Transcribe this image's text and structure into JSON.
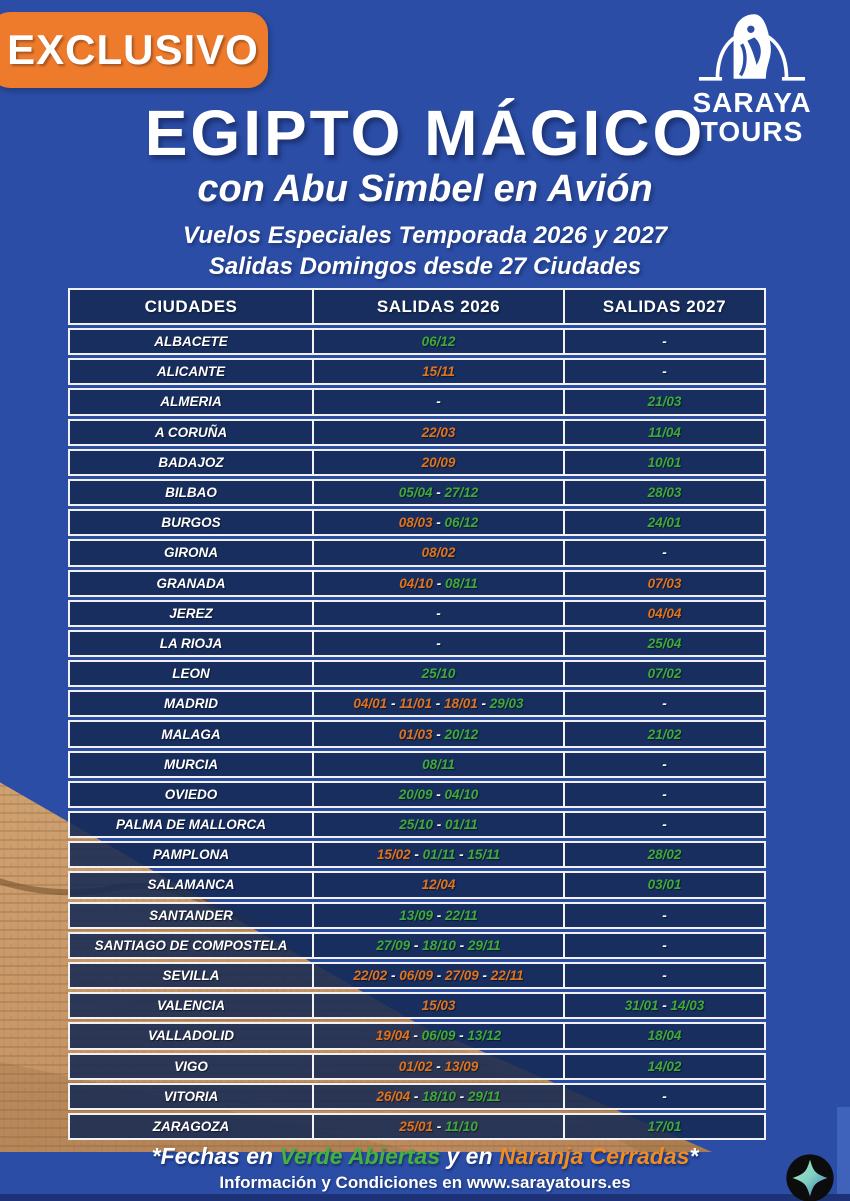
{
  "badge_label": "EXCLUSIVO",
  "logo": {
    "line1": "SARAYA",
    "line2": "TOURS"
  },
  "header": {
    "title": "EGIPTO MÁGICO",
    "subtitle": "con Abu Simbel en Avión",
    "season_line": "Vuelos Especiales Temporada 2026 y 2027",
    "departures_line": "Salidas Domingos desde 27 Ciudades"
  },
  "table": {
    "headers": [
      "CIUDADES",
      "SALIDAS 2026",
      "SALIDAS 2027"
    ],
    "rows": [
      {
        "city": "ALBACETE",
        "s2026": [
          {
            "t": "06/12",
            "c": "green"
          }
        ],
        "s2027": [
          {
            "t": "-",
            "c": "white"
          }
        ]
      },
      {
        "city": "ALICANTE",
        "s2026": [
          {
            "t": "15/11",
            "c": "orange"
          }
        ],
        "s2027": [
          {
            "t": "-",
            "c": "white"
          }
        ]
      },
      {
        "city": "ALMERIA",
        "s2026": [
          {
            "t": "-",
            "c": "white"
          }
        ],
        "s2027": [
          {
            "t": "21/03",
            "c": "green"
          }
        ]
      },
      {
        "city": "A CORUÑA",
        "s2026": [
          {
            "t": "22/03",
            "c": "orange"
          }
        ],
        "s2027": [
          {
            "t": "11/04",
            "c": "green"
          }
        ]
      },
      {
        "city": "BADAJOZ",
        "s2026": [
          {
            "t": "20/09",
            "c": "orange"
          }
        ],
        "s2027": [
          {
            "t": "10/01",
            "c": "green"
          }
        ]
      },
      {
        "city": "BILBAO",
        "s2026": [
          {
            "t": "05/04",
            "c": "green"
          },
          {
            "t": "27/12",
            "c": "green"
          }
        ],
        "s2027": [
          {
            "t": "28/03",
            "c": "green"
          }
        ]
      },
      {
        "city": "BURGOS",
        "s2026": [
          {
            "t": "08/03",
            "c": "orange"
          },
          {
            "t": "06/12",
            "c": "green"
          }
        ],
        "s2027": [
          {
            "t": "24/01",
            "c": "green"
          }
        ]
      },
      {
        "city": "GIRONA",
        "s2026": [
          {
            "t": "08/02",
            "c": "orange"
          }
        ],
        "s2027": [
          {
            "t": "-",
            "c": "white"
          }
        ]
      },
      {
        "city": "GRANADA",
        "s2026": [
          {
            "t": "04/10",
            "c": "orange"
          },
          {
            "t": "08/11",
            "c": "green"
          }
        ],
        "s2027": [
          {
            "t": "07/03",
            "c": "orange"
          }
        ]
      },
      {
        "city": "JEREZ",
        "s2026": [
          {
            "t": "-",
            "c": "white"
          }
        ],
        "s2027": [
          {
            "t": "04/04",
            "c": "orange"
          }
        ]
      },
      {
        "city": "LA RIOJA",
        "s2026": [
          {
            "t": "-",
            "c": "white"
          }
        ],
        "s2027": [
          {
            "t": "25/04",
            "c": "green"
          }
        ]
      },
      {
        "city": "LEON",
        "s2026": [
          {
            "t": "25/10",
            "c": "green"
          }
        ],
        "s2027": [
          {
            "t": "07/02",
            "c": "green"
          }
        ]
      },
      {
        "city": "MADRID",
        "s2026": [
          {
            "t": "04/01",
            "c": "orange"
          },
          {
            "t": "11/01",
            "c": "orange"
          },
          {
            "t": "18/01",
            "c": "orange"
          },
          {
            "t": "29/03",
            "c": "green"
          }
        ],
        "s2027": [
          {
            "t": "-",
            "c": "white"
          }
        ]
      },
      {
        "city": "MALAGA",
        "s2026": [
          {
            "t": "01/03",
            "c": "orange"
          },
          {
            "t": "20/12",
            "c": "green"
          }
        ],
        "s2027": [
          {
            "t": "21/02",
            "c": "green"
          }
        ]
      },
      {
        "city": "MURCIA",
        "s2026": [
          {
            "t": "08/11",
            "c": "green"
          }
        ],
        "s2027": [
          {
            "t": "-",
            "c": "white"
          }
        ]
      },
      {
        "city": "OVIEDO",
        "s2026": [
          {
            "t": "20/09",
            "c": "green"
          },
          {
            "t": "04/10",
            "c": "green"
          }
        ],
        "s2027": [
          {
            "t": "-",
            "c": "white"
          }
        ]
      },
      {
        "city": "PALMA DE  MALLORCA",
        "s2026": [
          {
            "t": "25/10",
            "c": "green"
          },
          {
            "t": "01/11",
            "c": "green"
          }
        ],
        "s2027": [
          {
            "t": "-",
            "c": "white"
          }
        ]
      },
      {
        "city": "PAMPLONA",
        "s2026": [
          {
            "t": "15/02",
            "c": "orange"
          },
          {
            "t": "01/11",
            "c": "green"
          },
          {
            "t": "15/11",
            "c": "green"
          }
        ],
        "s2027": [
          {
            "t": "28/02",
            "c": "green"
          }
        ]
      },
      {
        "city": "SALAMANCA",
        "s2026": [
          {
            "t": "12/04",
            "c": "orange"
          }
        ],
        "s2027": [
          {
            "t": "03/01",
            "c": "green"
          }
        ]
      },
      {
        "city": "SANTANDER",
        "s2026": [
          {
            "t": "13/09",
            "c": "green"
          },
          {
            "t": "22/11",
            "c": "green"
          }
        ],
        "s2027": [
          {
            "t": "-",
            "c": "white"
          }
        ]
      },
      {
        "city": "SANTIAGO DE COMPOSTELA",
        "s2026": [
          {
            "t": "27/09",
            "c": "green"
          },
          {
            "t": "18/10",
            "c": "green"
          },
          {
            "t": "29/11",
            "c": "green"
          }
        ],
        "s2027": [
          {
            "t": "-",
            "c": "white"
          }
        ]
      },
      {
        "city": "SEVILLA",
        "s2026": [
          {
            "t": "22/02",
            "c": "orange"
          },
          {
            "t": "06/09",
            "c": "orange"
          },
          {
            "t": "27/09",
            "c": "orange"
          },
          {
            "t": "22/11",
            "c": "orange"
          }
        ],
        "s2027": [
          {
            "t": "-",
            "c": "white"
          }
        ]
      },
      {
        "city": "VALENCIA",
        "s2026": [
          {
            "t": "15/03",
            "c": "orange"
          }
        ],
        "s2027": [
          {
            "t": "31/01",
            "c": "green"
          },
          {
            "t": "14/03",
            "c": "green"
          }
        ]
      },
      {
        "city": "VALLADOLID",
        "s2026": [
          {
            "t": "19/04",
            "c": "orange"
          },
          {
            "t": "06/09",
            "c": "green"
          },
          {
            "t": "13/12",
            "c": "green"
          }
        ],
        "s2027": [
          {
            "t": "18/04",
            "c": "green"
          }
        ]
      },
      {
        "city": "VIGO",
        "s2026": [
          {
            "t": "01/02",
            "c": "orange"
          },
          {
            "t": "13/09",
            "c": "orange"
          }
        ],
        "s2027": [
          {
            "t": "14/02",
            "c": "green"
          }
        ]
      },
      {
        "city": "VITORIA",
        "s2026": [
          {
            "t": "26/04",
            "c": "orange"
          },
          {
            "t": "18/10",
            "c": "green"
          },
          {
            "t": "29/11",
            "c": "green"
          }
        ],
        "s2027": [
          {
            "t": "-",
            "c": "white"
          }
        ]
      },
      {
        "city": "ZARAGOZA",
        "s2026": [
          {
            "t": "25/01",
            "c": "orange"
          },
          {
            "t": "11/10",
            "c": "green"
          }
        ],
        "s2027": [
          {
            "t": "17/01",
            "c": "green"
          }
        ]
      }
    ]
  },
  "footer": {
    "note_segments": [
      {
        "t": "*Fechas en ",
        "c": "white"
      },
      {
        "t": "Verde Abiertas",
        "c": "green"
      },
      {
        "t": " y en ",
        "c": "white"
      },
      {
        "t": "Naranja Cerradas",
        "c": "orange"
      },
      {
        "t": "*",
        "c": "white"
      }
    ],
    "info": "Información y Condiciones en www.sarayatours.es"
  },
  "colors": {
    "page_bg": "#2b4da6",
    "badge_orange": "#ee7a2b",
    "date_green": "#3fa93a",
    "date_orange": "#e0731e",
    "footer_green": "#44b23c",
    "footer_orange": "#f18c1e",
    "table_cell_navy": "#15294f"
  },
  "icons": {
    "falcon": "horus-falcon-arch-logo",
    "star": "sparkle-star-badge"
  }
}
